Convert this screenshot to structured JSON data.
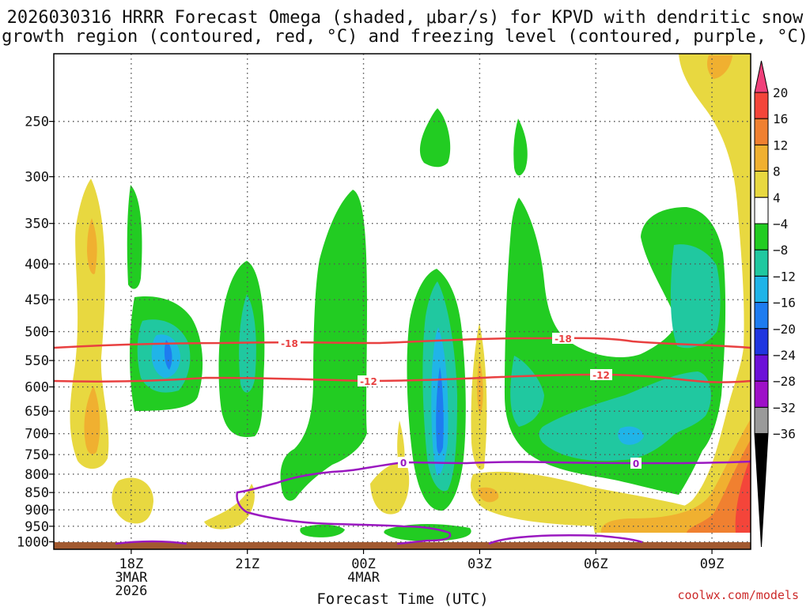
{
  "chart_data": {
    "type": "heatmap",
    "title_lines": [
      "2026030316 HRRR Forecast Omega (shaded, μbar/s) for KPVD with dendritic snow",
      "growth region (contoured, red, °C) and freezing level (contoured, purple, °C)"
    ],
    "xlabel": "Forecast Time (UTC)",
    "ylabel": "",
    "x_ticks": [
      {
        "hour": 2,
        "lines": [
          "18Z",
          "3MAR",
          "2026"
        ]
      },
      {
        "hour": 5,
        "lines": [
          "21Z"
        ]
      },
      {
        "hour": 8,
        "lines": [
          "00Z",
          "4MAR"
        ]
      },
      {
        "hour": 11,
        "lines": [
          "03Z"
        ]
      },
      {
        "hour": 14,
        "lines": [
          "06Z"
        ]
      },
      {
        "hour": 17,
        "lines": [
          "09Z"
        ]
      }
    ],
    "x_range_hours": [
      0,
      18
    ],
    "y_ticks": [
      250,
      300,
      350,
      400,
      450,
      500,
      550,
      600,
      650,
      700,
      750,
      800,
      850,
      900,
      950,
      1000
    ],
    "y_range_hPa": [
      200,
      1025
    ],
    "y_scale": "log",
    "colorbar": {
      "labels": [
        "20",
        "16",
        "12",
        "8",
        "4",
        "−4",
        "−8",
        "−12",
        "−16",
        "−20",
        "−24",
        "−28",
        "−32",
        "−36"
      ],
      "colors": [
        "#f0407a",
        "#f4453a",
        "#f08030",
        "#f0b030",
        "#e8d840",
        "#ffffff",
        "#22cc22",
        "#20c8a0",
        "#20b4e8",
        "#1e7cf0",
        "#2036e0",
        "#6c10d8",
        "#9e10c8",
        "#9a9a9a",
        "#000000"
      ]
    },
    "contours": {
      "dgz_labels": [
        "-18",
        "-12"
      ],
      "freezing_label": "0",
      "dgz_color": "#e84040",
      "freezing_color": "#9a18c0"
    },
    "credit": "coolwx.com/models"
  }
}
